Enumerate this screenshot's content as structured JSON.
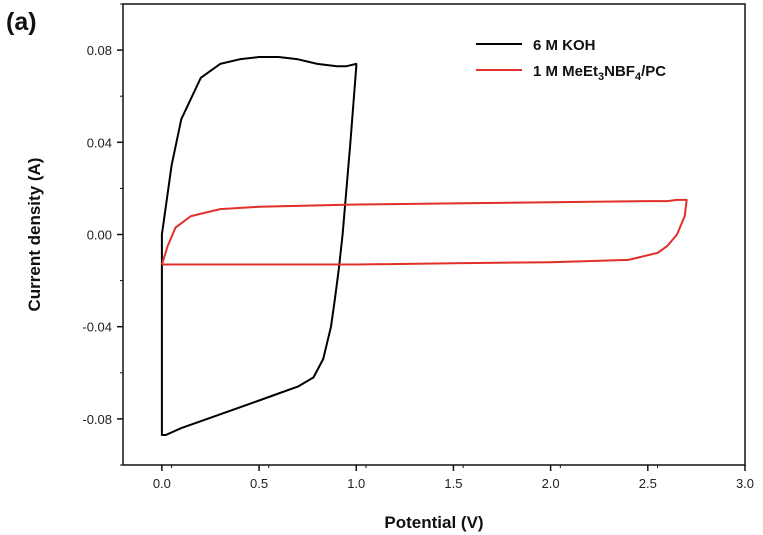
{
  "chart_data": {
    "type": "line",
    "panel_label": "(a)",
    "xlabel": "Potential (V)",
    "ylabel": "Current density (A)",
    "xlim": [
      -0.2,
      3.0
    ],
    "ylim": [
      -0.1,
      0.1
    ],
    "x_ticks": [
      "0.0",
      "0.5",
      "1.0",
      "1.5",
      "2.0",
      "2.5",
      "3.0"
    ],
    "y_ticks": [
      "-0.08",
      "-0.04",
      "0.00",
      "0.04",
      "0.08"
    ],
    "grid": false,
    "legend_position": "top-right",
    "legend": {
      "kci_label": "6 M KOH",
      "org_prefix": "1 M MeEt",
      "org_sub1": "3",
      "org_mid": "NBF",
      "org_sub2": "4",
      "org_suffix": "/PC"
    },
    "series": [
      {
        "name": "6 M KOH",
        "color": "#000000",
        "x": [
          0.0,
          0.05,
          0.1,
          0.2,
          0.3,
          0.4,
          0.5,
          0.6,
          0.7,
          0.8,
          0.9,
          0.95,
          1.0,
          1.0,
          0.97,
          0.95,
          0.93,
          0.91,
          0.89,
          0.87,
          0.83,
          0.78,
          0.7,
          0.6,
          0.5,
          0.4,
          0.3,
          0.2,
          0.1,
          0.02,
          0.0,
          0.0
        ],
        "y": [
          0.0,
          0.03,
          0.05,
          0.068,
          0.074,
          0.076,
          0.077,
          0.077,
          0.076,
          0.074,
          0.073,
          0.073,
          0.074,
          0.073,
          0.04,
          0.02,
          0.0,
          -0.015,
          -0.028,
          -0.04,
          -0.054,
          -0.062,
          -0.066,
          -0.069,
          -0.072,
          -0.075,
          -0.078,
          -0.081,
          -0.084,
          -0.087,
          -0.087,
          0.0
        ]
      },
      {
        "name": "1 M MeEt3NBF4/PC",
        "color": "#e0302a",
        "x": [
          0.0,
          0.03,
          0.07,
          0.15,
          0.3,
          0.5,
          1.0,
          1.5,
          2.0,
          2.5,
          2.6,
          2.65,
          2.7,
          2.69,
          2.65,
          2.6,
          2.55,
          2.4,
          2.0,
          1.5,
          1.0,
          0.5,
          0.3,
          0.1,
          0.0
        ],
        "y": [
          -0.013,
          -0.005,
          0.003,
          0.008,
          0.011,
          0.012,
          0.013,
          0.0135,
          0.014,
          0.0145,
          0.0145,
          0.015,
          0.015,
          0.008,
          0.0,
          -0.005,
          -0.008,
          -0.011,
          -0.012,
          -0.0125,
          -0.013,
          -0.013,
          -0.013,
          -0.013,
          -0.013
        ]
      }
    ]
  }
}
